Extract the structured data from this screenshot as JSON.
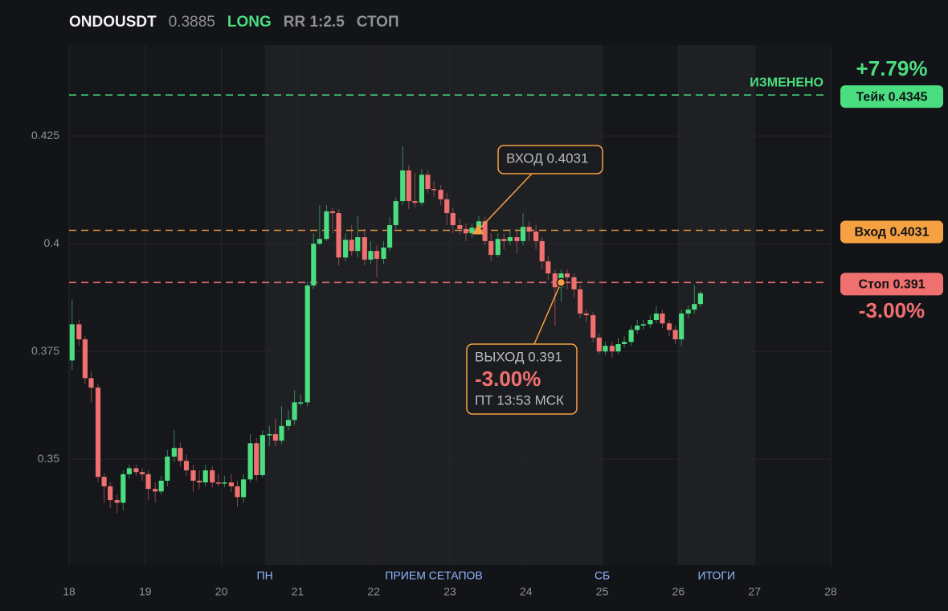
{
  "chart_data": {
    "type": "candlestick",
    "symbol": "ONDOUSDT",
    "price": 0.3885,
    "side": "LONG",
    "rr": "RR 1:2.5",
    "status": "СТОП",
    "up_color": "#4ade80",
    "down_color": "#f07070",
    "xlim": [
      18,
      28
    ],
    "xticks": [
      18,
      19,
      20,
      21,
      22,
      23,
      24,
      25,
      26,
      27,
      28
    ],
    "ylim": [
      0.3254,
      0.4461
    ],
    "yticks": [
      0.35,
      0.375,
      0.4,
      0.425
    ],
    "grid": true,
    "x": [
      18.04,
      18.13,
      18.21,
      18.29,
      18.38,
      18.46,
      18.54,
      18.63,
      18.71,
      18.79,
      18.88,
      18.96,
      19.04,
      19.13,
      19.21,
      19.29,
      19.38,
      19.46,
      19.54,
      19.63,
      19.71,
      19.79,
      19.88,
      19.96,
      20.04,
      20.13,
      20.21,
      20.29,
      20.38,
      20.46,
      20.54,
      20.63,
      20.71,
      20.79,
      20.88,
      20.96,
      21.04,
      21.13,
      21.21,
      21.29,
      21.38,
      21.46,
      21.54,
      21.63,
      21.71,
      21.79,
      21.88,
      21.96,
      22.04,
      22.13,
      22.21,
      22.29,
      22.38,
      22.46,
      22.54,
      22.63,
      22.71,
      22.79,
      22.88,
      22.96,
      23.04,
      23.13,
      23.21,
      23.29,
      23.38,
      23.46,
      23.54,
      23.63,
      23.71,
      23.79,
      23.88,
      23.96,
      24.04,
      24.13,
      24.21,
      24.29,
      24.38,
      24.46,
      24.54,
      24.63,
      24.71,
      24.79,
      24.88,
      24.96,
      25.04,
      25.13,
      25.21,
      25.29,
      25.38,
      25.46,
      25.54,
      25.63,
      25.71,
      25.79,
      25.88,
      25.96,
      26.04,
      26.13,
      26.21,
      26.29
    ],
    "open": [
      0.3729,
      0.3813,
      0.3778,
      0.3688,
      0.3666,
      0.3459,
      0.3437,
      0.3405,
      0.3399,
      0.3465,
      0.3479,
      0.347,
      0.3465,
      0.3431,
      0.3425,
      0.345,
      0.3506,
      0.3526,
      0.3496,
      0.3474,
      0.345,
      0.3446,
      0.3474,
      0.3446,
      0.3444,
      0.3446,
      0.3437,
      0.3412,
      0.3453,
      0.3537,
      0.3463,
      0.3556,
      0.3558,
      0.3543,
      0.3577,
      0.3591,
      0.3629,
      0.3632,
      0.3903,
      0.4,
      0.4011,
      0.4075,
      0.4071,
      0.3968,
      0.4009,
      0.3983,
      0.4015,
      0.3963,
      0.3983,
      0.3965,
      0.3991,
      0.4043,
      0.4099,
      0.417,
      0.4099,
      0.4095,
      0.416,
      0.4127,
      0.4125,
      0.4103,
      0.4071,
      0.4043,
      0.4034,
      0.4024,
      0.4037,
      0.4052,
      0.4006,
      0.3974,
      0.4011,
      0.4006,
      0.4015,
      0.4006,
      0.4039,
      0.4028,
      0.4006,
      0.3959,
      0.3931,
      0.3899,
      0.3931,
      0.3922,
      0.3894,
      0.3838,
      0.3834,
      0.3782,
      0.375,
      0.3763,
      0.375,
      0.3767,
      0.3772,
      0.38,
      0.381,
      0.3813,
      0.3823,
      0.3838,
      0.3815,
      0.38,
      0.3778,
      0.3838,
      0.3847,
      0.386
    ],
    "high": [
      0.3871,
      0.3823,
      0.3785,
      0.3703,
      0.3674,
      0.3468,
      0.3446,
      0.3418,
      0.3474,
      0.3487,
      0.3487,
      0.3479,
      0.3474,
      0.3446,
      0.3461,
      0.3521,
      0.3567,
      0.3539,
      0.3511,
      0.3487,
      0.3474,
      0.3487,
      0.3483,
      0.3465,
      0.3461,
      0.3465,
      0.345,
      0.3465,
      0.3558,
      0.3549,
      0.3567,
      0.3577,
      0.3595,
      0.3623,
      0.3614,
      0.366,
      0.3651,
      0.3912,
      0.4024,
      0.409,
      0.409,
      0.4084,
      0.408,
      0.4024,
      0.4043,
      0.4065,
      0.4034,
      0.4006,
      0.3996,
      0.4006,
      0.4062,
      0.4108,
      0.4226,
      0.4183,
      0.4164,
      0.4174,
      0.417,
      0.4146,
      0.4136,
      0.4118,
      0.4084,
      0.4058,
      0.4047,
      0.4047,
      0.4065,
      0.4062,
      0.4024,
      0.4024,
      0.4024,
      0.4034,
      0.4034,
      0.4071,
      0.4052,
      0.4043,
      0.4015,
      0.3972,
      0.394,
      0.394,
      0.394,
      0.3931,
      0.3903,
      0.3847,
      0.3841,
      0.3791,
      0.3772,
      0.3772,
      0.3782,
      0.3785,
      0.381,
      0.3823,
      0.3823,
      0.3834,
      0.3856,
      0.3847,
      0.3823,
      0.381,
      0.3847,
      0.3856,
      0.3903,
      0.389
    ],
    "low": [
      0.3707,
      0.3763,
      0.3674,
      0.3632,
      0.3446,
      0.3399,
      0.3386,
      0.3375,
      0.3381,
      0.3455,
      0.3461,
      0.345,
      0.3405,
      0.3399,
      0.3418,
      0.3437,
      0.3493,
      0.3483,
      0.3461,
      0.3424,
      0.3431,
      0.3437,
      0.3435,
      0.3437,
      0.3435,
      0.3424,
      0.339,
      0.3399,
      0.3446,
      0.345,
      0.3457,
      0.353,
      0.353,
      0.3535,
      0.3567,
      0.358,
      0.3623,
      0.3623,
      0.3894,
      0.3996,
      0.4006,
      0.4024,
      0.395,
      0.3959,
      0.3972,
      0.3968,
      0.395,
      0.3953,
      0.3922,
      0.3953,
      0.3983,
      0.4034,
      0.409,
      0.408,
      0.4084,
      0.4088,
      0.4118,
      0.4108,
      0.409,
      0.4043,
      0.4024,
      0.4021,
      0.4006,
      0.4013,
      0.4024,
      0.3996,
      0.3959,
      0.3968,
      0.3987,
      0.3996,
      0.3978,
      0.3996,
      0.4006,
      0.3987,
      0.394,
      0.3916,
      0.381,
      0.3866,
      0.3894,
      0.3875,
      0.3828,
      0.3819,
      0.3772,
      0.3744,
      0.3741,
      0.3735,
      0.3744,
      0.3759,
      0.3763,
      0.3791,
      0.38,
      0.3804,
      0.3815,
      0.3804,
      0.3785,
      0.3767,
      0.3763,
      0.3828,
      0.3838,
      0.3853
    ],
    "close": [
      0.3813,
      0.3778,
      0.3688,
      0.3666,
      0.3459,
      0.3437,
      0.3405,
      0.3399,
      0.3465,
      0.3479,
      0.347,
      0.3465,
      0.3431,
      0.3425,
      0.345,
      0.3506,
      0.3526,
      0.3496,
      0.3474,
      0.345,
      0.3446,
      0.3474,
      0.3446,
      0.3444,
      0.3446,
      0.3437,
      0.3412,
      0.3453,
      0.3537,
      0.3463,
      0.3556,
      0.3558,
      0.3543,
      0.3577,
      0.3591,
      0.3632,
      0.3632,
      0.3903,
      0.4,
      0.4011,
      0.4075,
      0.4071,
      0.3968,
      0.4009,
      0.3983,
      0.4015,
      0.3963,
      0.3983,
      0.3965,
      0.3991,
      0.4043,
      0.4099,
      0.417,
      0.4099,
      0.4095,
      0.416,
      0.4127,
      0.4125,
      0.4103,
      0.4071,
      0.4043,
      0.4034,
      0.4024,
      0.4037,
      0.4052,
      0.4006,
      0.3974,
      0.4011,
      0.4006,
      0.4015,
      0.4006,
      0.4039,
      0.4028,
      0.4006,
      0.3959,
      0.3931,
      0.3899,
      0.3931,
      0.3922,
      0.3894,
      0.3838,
      0.3834,
      0.3782,
      0.375,
      0.3763,
      0.375,
      0.3767,
      0.3772,
      0.38,
      0.381,
      0.3813,
      0.3823,
      0.3838,
      0.3815,
      0.38,
      0.3778,
      0.3838,
      0.3847,
      0.386,
      0.3885
    ],
    "shaded_regions": [
      {
        "from": 20.57,
        "to": 25
      },
      {
        "from": 26,
        "to": 27
      }
    ],
    "region_labels": [
      {
        "x": 20.57,
        "text": "ПН"
      },
      {
        "x": 22.79,
        "text": "ПРИЕМ СЕТАПОВ"
      },
      {
        "x": 25,
        "text": "СБ"
      },
      {
        "x": 26.5,
        "text": "ИТОГИ"
      }
    ],
    "levels": [
      {
        "label": "Тейк 0.4345",
        "value": 0.4345,
        "color": "#4ade80",
        "change": "+7.79%",
        "note": "ИЗМЕНЕНО"
      },
      {
        "label": "Вход 0.4031",
        "value": 0.4031,
        "color": "#f5a142"
      },
      {
        "label": "Стоп 0.391",
        "value": 0.391,
        "color": "#f07070",
        "change": "-3.00%"
      }
    ],
    "annotations": [
      {
        "x": 23.37,
        "y": 0.4031,
        "marker": "triangle",
        "lines": [
          "ВХОД 0.4031"
        ]
      },
      {
        "x": 24.46,
        "y": 0.391,
        "marker": "dot",
        "lines": [
          "ВЫХОД 0.391",
          "-3.00%",
          "ПТ 13:53 МСК"
        ]
      }
    ]
  }
}
